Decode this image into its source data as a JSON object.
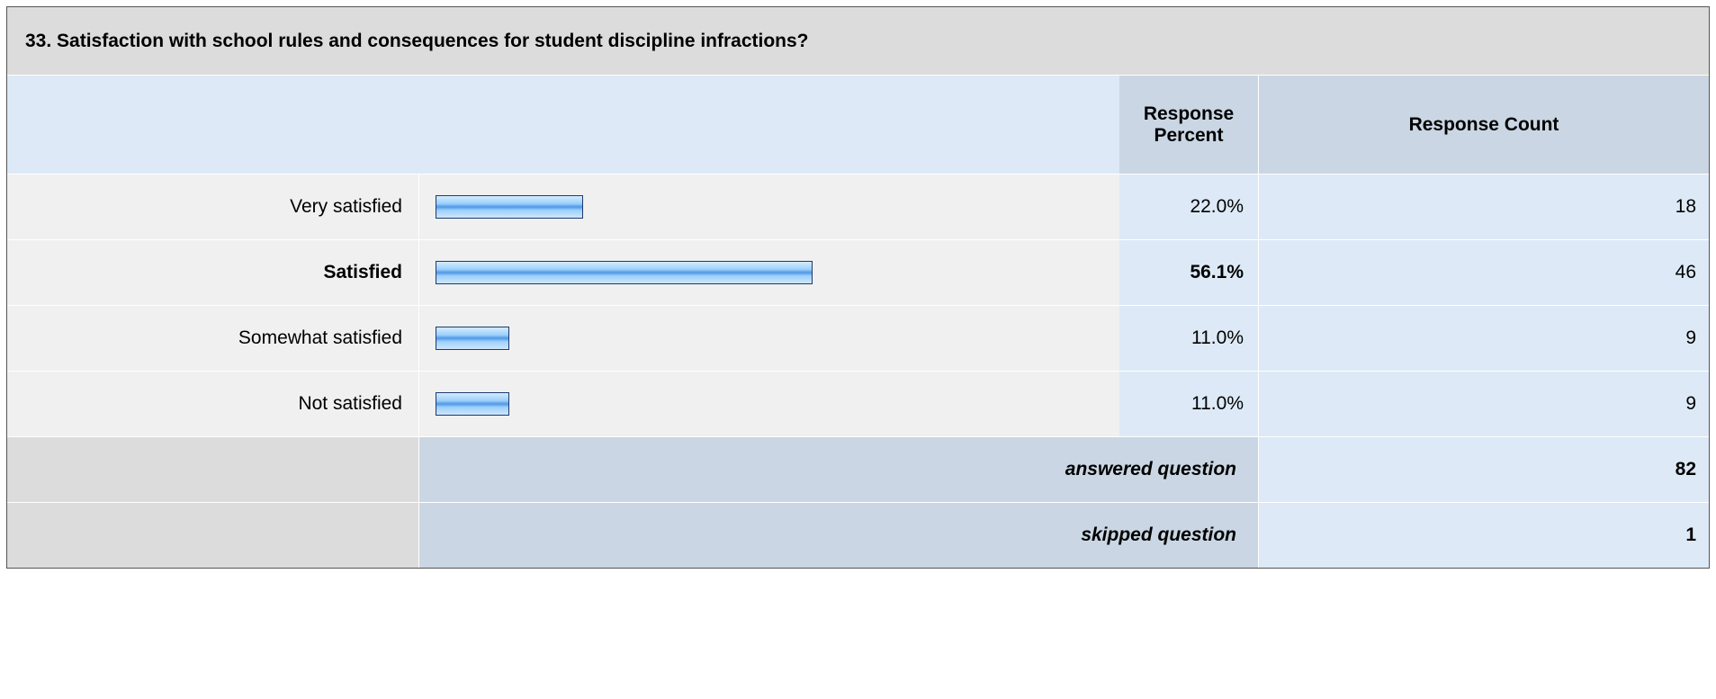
{
  "question": {
    "title": "33. Satisfaction with school rules and consequences for student discipline infractions?"
  },
  "header": {
    "percent": "Response Percent",
    "count": "Response Count"
  },
  "rows": [
    {
      "label": "Very satisfied",
      "percent": 22.0,
      "percent_label": "22.0%",
      "count": 18
    },
    {
      "label": "Satisfied",
      "percent": 56.1,
      "percent_label": "56.1%",
      "count": 46
    },
    {
      "label": "Somewhat satisfied",
      "percent": 11.0,
      "percent_label": "11.0%",
      "count": 9
    },
    {
      "label": "Not satisfied",
      "percent": 11.0,
      "percent_label": "11.0%",
      "count": 9
    }
  ],
  "summary": [
    {
      "label": "answered question",
      "count": 82
    },
    {
      "label": "skipped question",
      "count": 1
    }
  ]
}
